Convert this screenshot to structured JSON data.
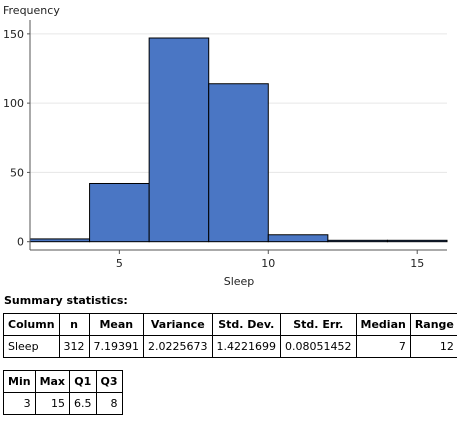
{
  "chart_data": {
    "type": "histogram",
    "title": "",
    "xlabel": "Sleep",
    "ylabel": "Frequency",
    "bins": [
      {
        "start": 2,
        "end": 4,
        "count": 2
      },
      {
        "start": 4,
        "end": 6,
        "count": 42
      },
      {
        "start": 6,
        "end": 8,
        "count": 147
      },
      {
        "start": 8,
        "end": 10,
        "count": 114
      },
      {
        "start": 10,
        "end": 12,
        "count": 5
      },
      {
        "start": 12,
        "end": 14,
        "count": 1
      },
      {
        "start": 14,
        "end": 16,
        "count": 1
      }
    ],
    "xlim": [
      2,
      16
    ],
    "ylim": [
      -6,
      160
    ],
    "xticks": [
      5,
      10,
      15
    ],
    "yticks": [
      0,
      50,
      100,
      150
    ],
    "bar_color": "#4a76c4",
    "grid": true
  },
  "summary": {
    "title": "Summary statistics:",
    "table1": {
      "headers": [
        "Column",
        "n",
        "Mean",
        "Variance",
        "Std. Dev.",
        "Std. Err.",
        "Median",
        "Range"
      ],
      "rows": [
        [
          "Sleep",
          "312",
          "7.19391",
          "2.0225673",
          "1.4221699",
          "0.08051452",
          "7",
          "12"
        ]
      ]
    },
    "table2": {
      "headers": [
        "Min",
        "Max",
        "Q1",
        "Q3"
      ],
      "rows": [
        [
          "3",
          "15",
          "6.5",
          "8"
        ]
      ]
    }
  }
}
